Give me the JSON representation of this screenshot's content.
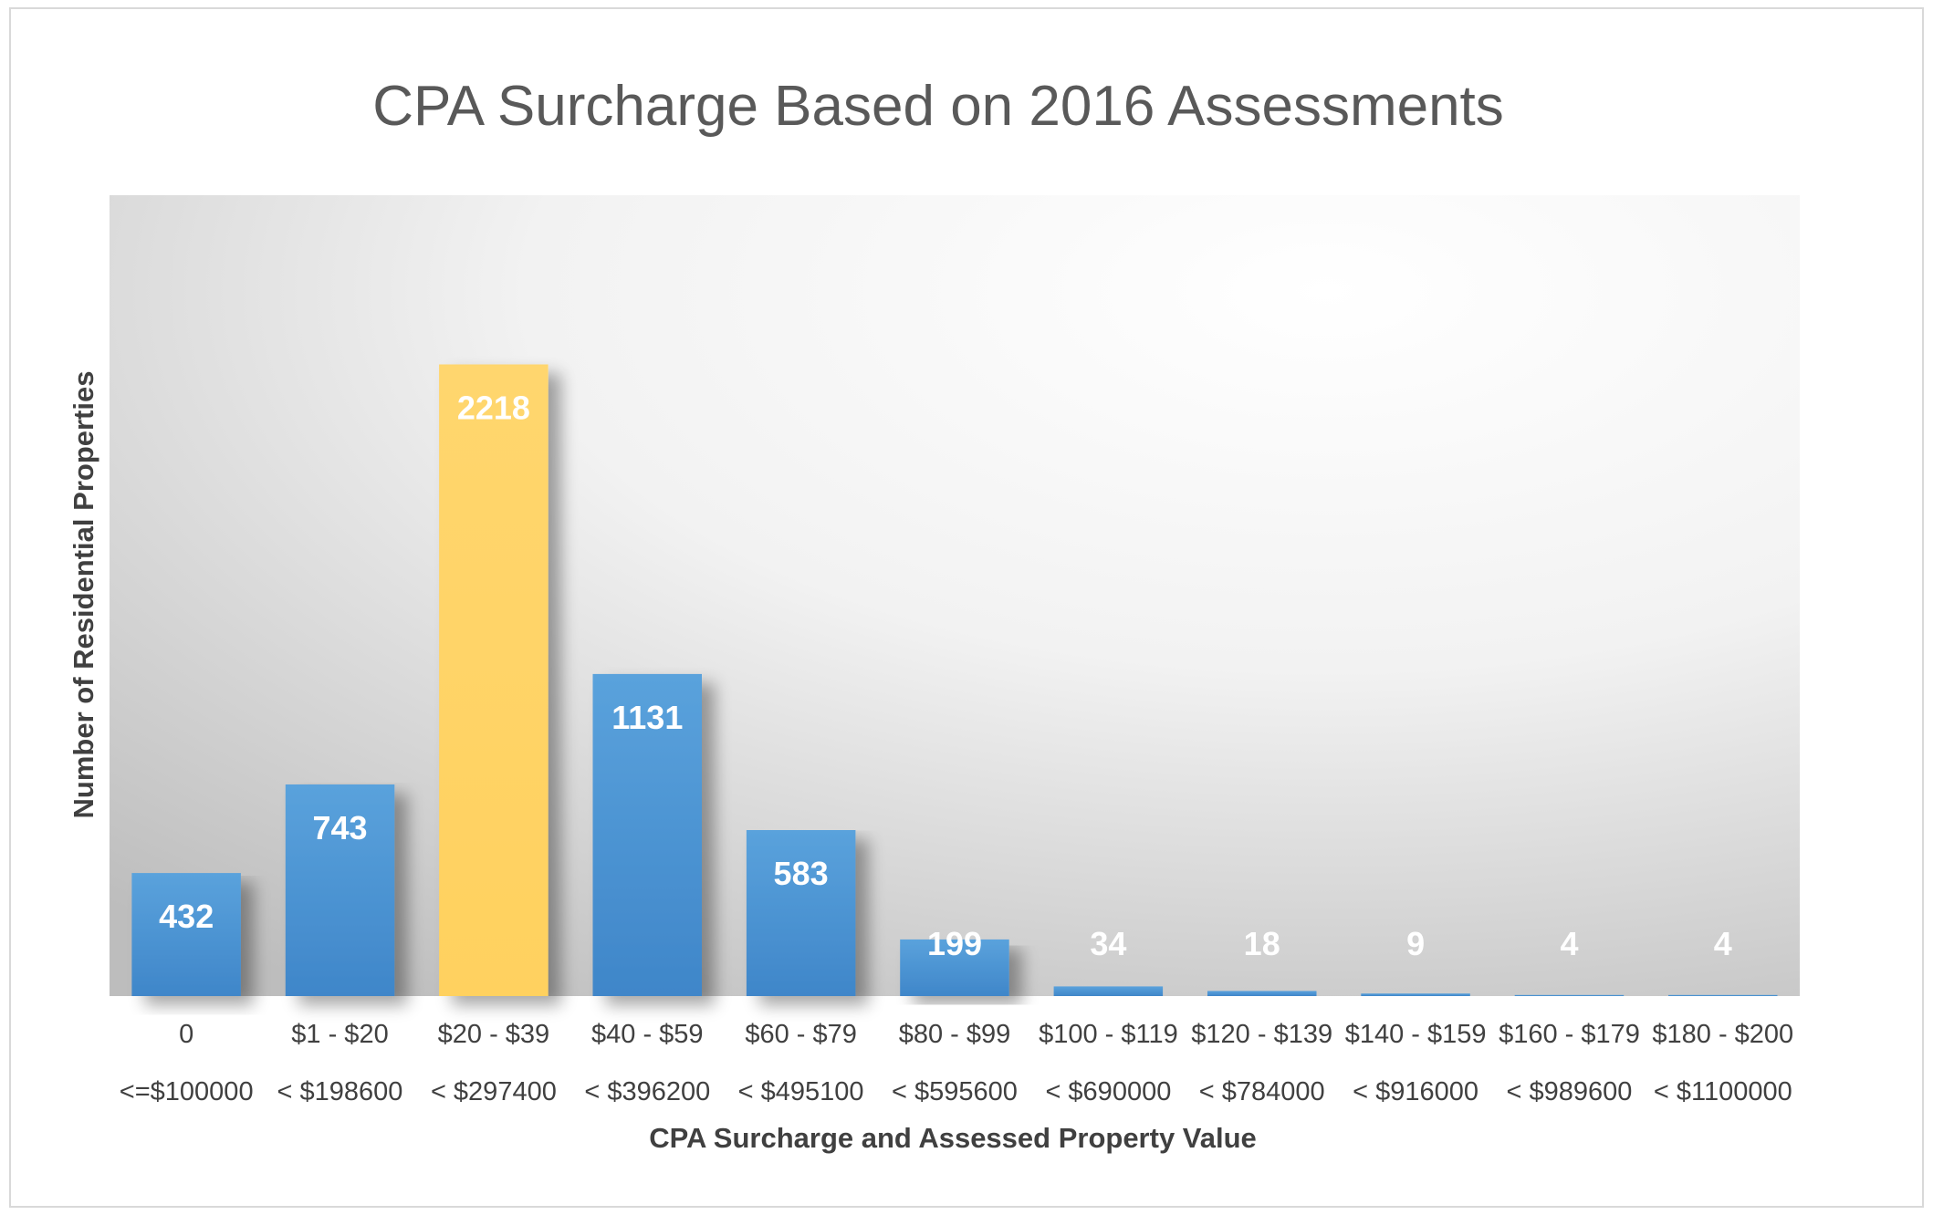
{
  "chart_data": {
    "type": "bar",
    "title": "CPA Surcharge Based on 2016 Assessments",
    "xlabel": "CPA Surcharge and Assessed  Property Value",
    "ylabel": "Number of Residential Properties",
    "categories": [
      "0",
      "$1 - $20",
      "$20 - $39",
      "$40 - $59",
      "$60 - $79",
      "$80 - $99",
      "$100 - $119",
      "$120 - $139",
      "$140 - $159",
      "$160 - $179",
      "$180 - $200"
    ],
    "subcategories": [
      "<=$100000",
      "<  $198600",
      "< $297400",
      "< $396200",
      "< $495100",
      "< $595600",
      "< $690000",
      "< $784000",
      "< $916000",
      "< $989600",
      "< $1100000"
    ],
    "values": [
      432,
      743,
      2218,
      1131,
      583,
      199,
      34,
      18,
      9,
      4,
      4
    ],
    "data_labels": [
      "432",
      "743",
      "2218",
      "1131",
      "583",
      "199",
      "34",
      "18",
      "9",
      "4",
      "4"
    ],
    "highlight_index": 2,
    "ylim": [
      0,
      2500
    ],
    "grid": false,
    "legend": "none",
    "colors": {
      "bar": "#4a90d0",
      "highlight": "#ffd468",
      "title": "#595959",
      "text": "#404040"
    }
  }
}
